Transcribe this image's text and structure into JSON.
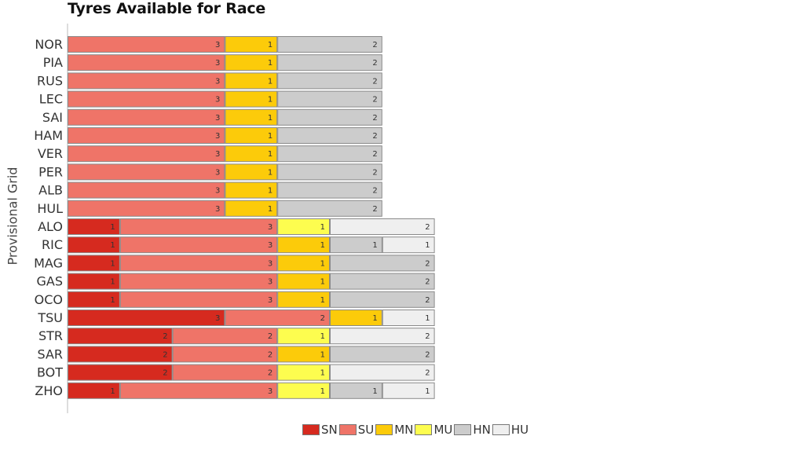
{
  "chart_data": {
    "type": "bar",
    "orientation": "horizontal",
    "stacked": true,
    "title": "Tyres Available for Race",
    "ylabel": "Provisional Grid",
    "xlabel": "",
    "xlim": [
      0,
      14
    ],
    "legend_position": "bottom",
    "categories": [
      "NOR",
      "PIA",
      "RUS",
      "LEC",
      "SAI",
      "HAM",
      "VER",
      "PER",
      "ALB",
      "HUL",
      "ALO",
      "RIC",
      "MAG",
      "GAS",
      "OCO",
      "TSU",
      "STR",
      "SAR",
      "BOT",
      "ZHO"
    ],
    "series": [
      {
        "name": "SN",
        "color": "#d62a1f",
        "values": [
          0,
          0,
          0,
          0,
          0,
          0,
          0,
          0,
          0,
          0,
          1,
          1,
          1,
          1,
          1,
          3,
          2,
          2,
          2,
          1
        ]
      },
      {
        "name": "SU",
        "color": "#ef7468",
        "values": [
          3,
          3,
          3,
          3,
          3,
          3,
          3,
          3,
          3,
          3,
          3,
          3,
          3,
          3,
          3,
          2,
          2,
          2,
          2,
          3
        ]
      },
      {
        "name": "MN",
        "color": "#fccb0a",
        "values": [
          1,
          1,
          1,
          1,
          1,
          1,
          1,
          1,
          1,
          1,
          0,
          1,
          1,
          1,
          1,
          1,
          0,
          1,
          0,
          0
        ]
      },
      {
        "name": "MU",
        "color": "#fdfd4f",
        "values": [
          0,
          0,
          0,
          0,
          0,
          0,
          0,
          0,
          0,
          0,
          1,
          0,
          0,
          0,
          0,
          0,
          1,
          0,
          1,
          1
        ]
      },
      {
        "name": "HN",
        "color": "#cccccc",
        "values": [
          2,
          2,
          2,
          2,
          2,
          2,
          2,
          2,
          2,
          2,
          0,
          1,
          2,
          2,
          2,
          0,
          0,
          2,
          0,
          1
        ]
      },
      {
        "name": "HU",
        "color": "#efefef",
        "values": [
          0,
          0,
          0,
          0,
          0,
          0,
          0,
          0,
          0,
          0,
          2,
          1,
          0,
          0,
          0,
          1,
          2,
          0,
          2,
          1
        ]
      }
    ]
  }
}
